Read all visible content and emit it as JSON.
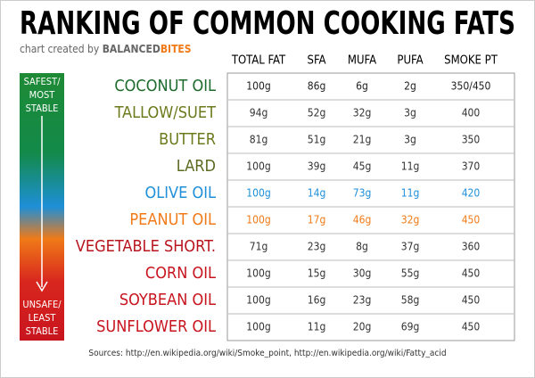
{
  "header": {
    "title": "RANKING OF COMMON COOKING FATS",
    "credit": "chart created by",
    "brand_a": "BALANCED",
    "brand_b": "BITES"
  },
  "table": {
    "columns": [
      "TOTAL FAT",
      "SFA",
      "MUFA",
      "PUFA",
      "SMOKE PT"
    ],
    "rows": [
      {
        "name": "COCONUT OIL",
        "color": "#1d6b2c",
        "value_color": "#222",
        "cells": [
          "100g",
          "86g",
          "6g",
          "2g",
          "350/450"
        ]
      },
      {
        "name": "TALLOW/SUET",
        "color": "#6d7a1c",
        "value_color": "#333",
        "cells": [
          "94g",
          "52g",
          "32g",
          "3g",
          "400"
        ]
      },
      {
        "name": "BUTTER",
        "color": "#6d7a1c",
        "value_color": "#333",
        "cells": [
          "81g",
          "51g",
          "21g",
          "3g",
          "350"
        ]
      },
      {
        "name": "LARD",
        "color": "#5a6a20",
        "value_color": "#333",
        "cells": [
          "100g",
          "39g",
          "45g",
          "11g",
          "370"
        ]
      },
      {
        "name": "OLIVE OIL",
        "color": "#1e8fd8",
        "value_color": "#1e8fd8",
        "cells": [
          "100g",
          "14g",
          "73g",
          "11g",
          "420"
        ]
      },
      {
        "name": "PEANUT OIL",
        "color": "#f07a18",
        "value_color": "#f07a18",
        "cells": [
          "100g",
          "17g",
          "46g",
          "32g",
          "450"
        ]
      },
      {
        "name": "VEGETABLE SHORT.",
        "color": "#b8141e",
        "value_color": "#333",
        "cells": [
          "71g",
          "23g",
          "8g",
          "37g",
          "360"
        ]
      },
      {
        "name": "CORN OIL",
        "color": "#c8141e",
        "value_color": "#333",
        "cells": [
          "100g",
          "15g",
          "30g",
          "55g",
          "450"
        ]
      },
      {
        "name": "SOYBEAN OIL",
        "color": "#c8141e",
        "value_color": "#333",
        "cells": [
          "100g",
          "16g",
          "23g",
          "58g",
          "450"
        ]
      },
      {
        "name": "SUNFLOWER OIL",
        "color": "#c8141e",
        "value_color": "#333",
        "cells": [
          "100g",
          "11g",
          "20g",
          "69g",
          "450"
        ]
      }
    ]
  },
  "scale": {
    "top": [
      "SAFEST/",
      "MOST",
      "STABLE"
    ],
    "bottom": [
      "UNSAFE/",
      "LEAST",
      "STABLE"
    ]
  },
  "footer": {
    "sources": "Sources: http://en.wikipedia.org/wiki/Smoke_point, http://en.wikipedia.org/wiki/Fatty_acid"
  }
}
